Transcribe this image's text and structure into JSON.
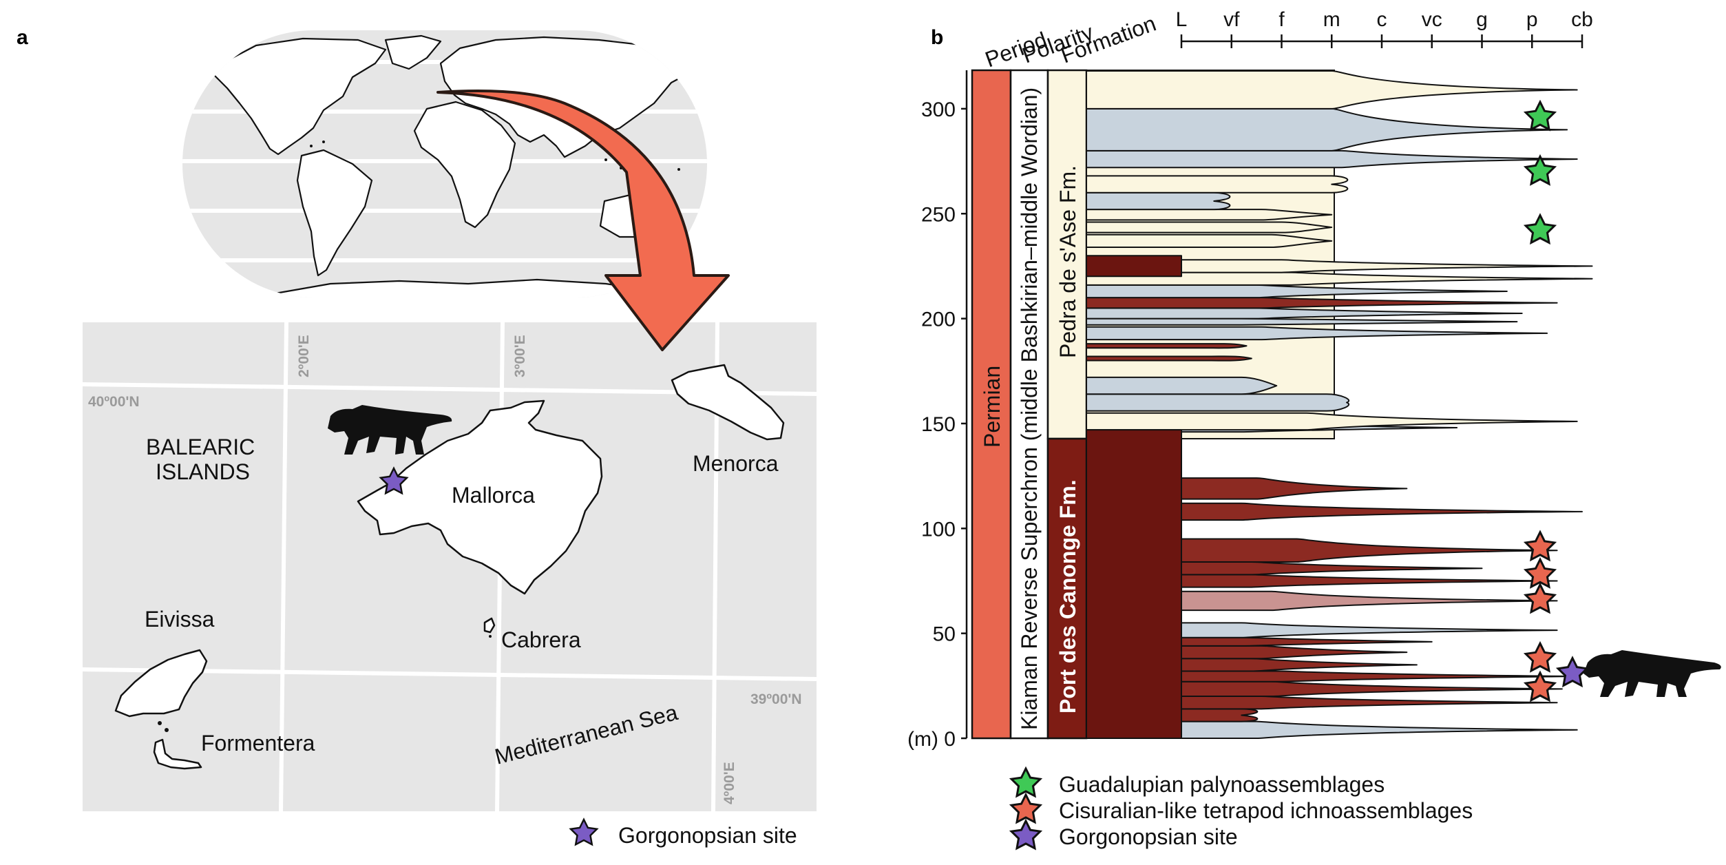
{
  "panel_a": {
    "label": "a",
    "grid": {
      "lon_labels": [
        "2º00'E",
        "3º00'E",
        "4º00'E"
      ],
      "lat_labels": [
        "40º00'N",
        "39º00'N"
      ]
    },
    "region_label_line1": "BALEARIC",
    "region_label_line2": "ISLANDS",
    "islands": {
      "mallorca": "Mallorca",
      "menorca": "Menorca",
      "eivissa": "Eivissa",
      "formentera": "Formentera",
      "cabrera": "Cabrera"
    },
    "sea_label": "Mediterranean Sea",
    "legend": {
      "label": "Gorgonopsian site",
      "color": "#7b5cc4"
    },
    "colors": {
      "land": "#ffffff",
      "sea": "#e6e6e6",
      "arrow": "#f26b50",
      "arrow_stroke": "#2a1a14"
    }
  },
  "panel_b": {
    "label": "b",
    "column_headers": [
      "Period",
      "Polarity",
      "Formation"
    ],
    "period": "Permian",
    "polarity": "Kiaman Reverse Superchron (middle Bashkirian–middle Wordian)",
    "formations": {
      "upper": "Pedra de s'Ase Fm.",
      "lower": "Port des Canonge Fm."
    },
    "grain_size_labels": [
      "L",
      "vf",
      "f",
      "m",
      "c",
      "vc",
      "g",
      "p",
      "cb"
    ],
    "y_axis": {
      "unit": "(m)",
      "ticks": [
        0,
        50,
        100,
        150,
        200,
        250,
        300
      ]
    },
    "markers": {
      "green": [
        296,
        270,
        242
      ],
      "red": [
        91,
        78,
        66,
        38,
        24
      ],
      "purple": [
        31
      ]
    },
    "legend": [
      {
        "label": "Guadalupian palynoassemblages",
        "color": "#3fc956"
      },
      {
        "label": "Cisuralian-like tetrapod ichnoassemblages",
        "color": "#e8664f"
      },
      {
        "label": "Gorgonopsian site",
        "color": "#7b5cc4"
      }
    ],
    "colors": {
      "period": "#e8664f",
      "lower_fm": "#7e1c14",
      "mudstone": "#6b1510",
      "red_sand": "#8c2a22",
      "pink_sand": "#c99391",
      "cream_sand": "#fbf6e0",
      "grey_sand": "#c8d3dd"
    }
  }
}
